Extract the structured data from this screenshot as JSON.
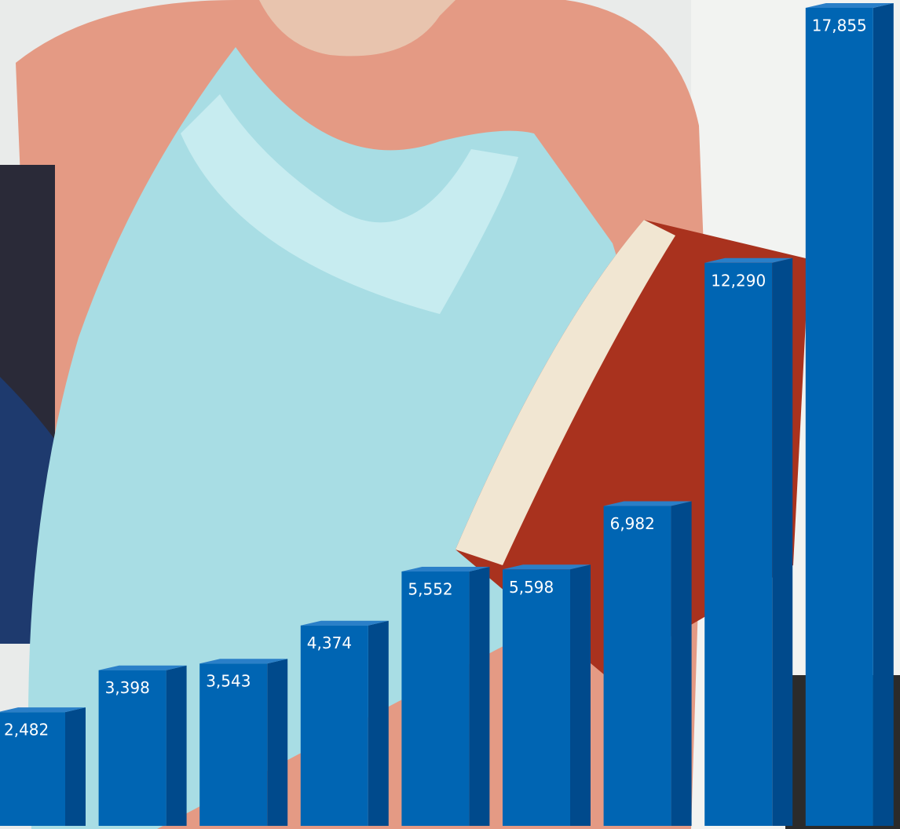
{
  "chart_data": {
    "type": "bar",
    "values": [
      2482,
      3398,
      3543,
      4374,
      5552,
      5598,
      6982,
      12290,
      17855
    ],
    "value_labels": [
      "2,482",
      "3,398",
      "3,543",
      "4,374",
      "5,552",
      "5,598",
      "6,982",
      "12,290",
      "17,855"
    ],
    "color": "#0065b3"
  }
}
